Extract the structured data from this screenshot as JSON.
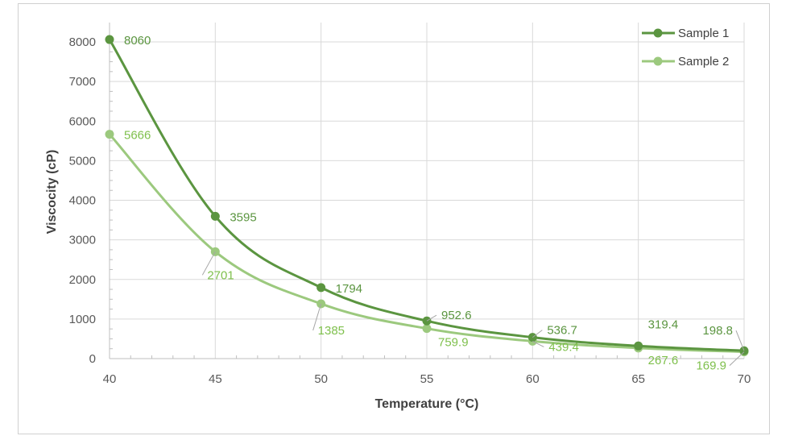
{
  "chart_data": {
    "type": "line",
    "title": "",
    "xlabel": "Temperature (°C)",
    "ylabel": "Viscocity (cP)",
    "x": [
      40,
      45,
      50,
      55,
      60,
      65,
      70
    ],
    "xlim": [
      40,
      70
    ],
    "ylim": [
      0,
      8000
    ],
    "x_ticks": [
      "40",
      "45",
      "50",
      "55",
      "60",
      "65",
      "70"
    ],
    "y_ticks": [
      "0",
      "1000",
      "2000",
      "3000",
      "4000",
      "5000",
      "6000",
      "7000",
      "8000"
    ],
    "grid": true,
    "legend_position": "top-right",
    "series": [
      {
        "name": "Sample 1",
        "color": "#5b9540",
        "values": [
          8060,
          3595,
          1794,
          952.6,
          536.7,
          319.4,
          198.8
        ],
        "labels": [
          "8060",
          "3595",
          "1794",
          "952.6",
          "536.7",
          "319.4",
          "198.8"
        ]
      },
      {
        "name": "Sample 2",
        "color": "#9cc97e",
        "label_color": "#7fc04d",
        "values": [
          5666,
          2701,
          1385,
          759.9,
          439.4,
          267.6,
          169.9
        ],
        "labels": [
          "5666",
          "2701",
          "1385",
          "759.9",
          "439.4",
          "267.6",
          "169.9"
        ]
      }
    ]
  }
}
